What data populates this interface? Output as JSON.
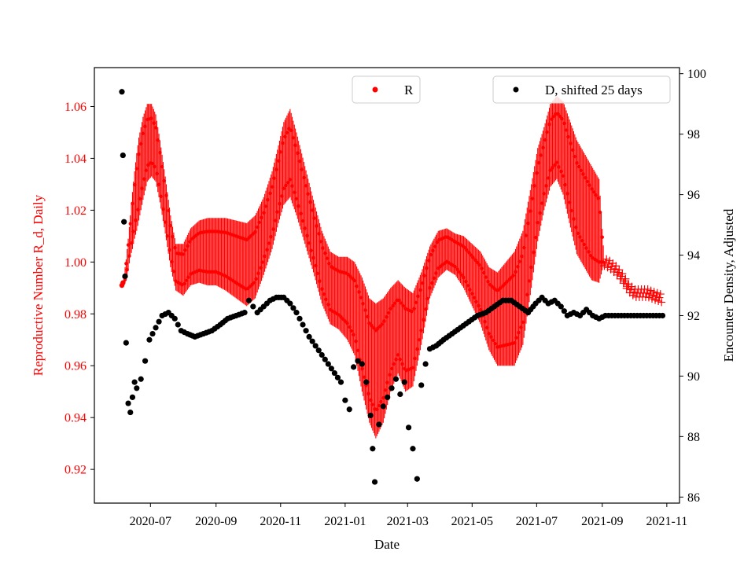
{
  "chart_data": {
    "type": "scatter",
    "title": "",
    "xlabel": "Date",
    "ylabel_left": "Reproductive Number R_d, Daily",
    "ylabel_right": "Encounter Density, Adjusted",
    "x_range": [
      "2020-05-09",
      "2021-11-13"
    ],
    "ylim_left": [
      0.907,
      1.075
    ],
    "ylim_right": [
      85.8,
      100.2
    ],
    "x_ticks": [
      "2020-07",
      "2020-09",
      "2020-11",
      "2021-01",
      "2021-03",
      "2021-05",
      "2021-07",
      "2021-09",
      "2021-11"
    ],
    "y_ticks_left": [
      "0.92",
      "0.94",
      "0.96",
      "0.98",
      "1.00",
      "1.02",
      "1.04",
      "1.06"
    ],
    "y_ticks_right": [
      "86",
      "88",
      "90",
      "92",
      "94",
      "96",
      "98",
      "100"
    ],
    "grid": false,
    "legend": [
      {
        "label": "R",
        "color": "#ff0000",
        "marker": "dot",
        "placement": "top-center"
      },
      {
        "label": "D, shifted 25 days",
        "color": "#000000",
        "marker": "dot",
        "placement": "top-right"
      }
    ],
    "series": [
      {
        "name": "R",
        "axis": "left",
        "color": "#ff0000",
        "x": [
          "2020-06-04",
          "2020-06-06",
          "2020-06-08",
          "2020-06-10",
          "2020-06-12",
          "2020-06-14",
          "2020-06-16",
          "2020-06-18",
          "2020-06-20",
          "2020-06-24",
          "2020-06-28",
          "2020-07-02",
          "2020-07-06",
          "2020-07-10",
          "2020-07-15",
          "2020-07-20",
          "2020-07-25",
          "2020-08-01",
          "2020-08-08",
          "2020-08-16",
          "2020-08-24",
          "2020-09-01",
          "2020-09-10",
          "2020-09-20",
          "2020-09-30",
          "2020-10-08",
          "2020-10-16",
          "2020-10-24",
          "2020-10-30",
          "2020-11-04",
          "2020-11-10",
          "2020-11-16",
          "2020-11-24",
          "2020-12-02",
          "2020-12-10",
          "2020-12-18",
          "2020-12-26",
          "2021-01-03",
          "2021-01-10",
          "2021-01-17",
          "2021-01-24",
          "2021-01-30",
          "2021-02-06",
          "2021-02-13",
          "2021-02-20",
          "2021-02-27",
          "2021-03-06",
          "2021-03-14",
          "2021-03-22",
          "2021-03-30",
          "2021-04-07",
          "2021-04-15",
          "2021-04-23",
          "2021-05-01",
          "2021-05-09",
          "2021-05-17",
          "2021-05-25",
          "2021-06-02",
          "2021-06-10",
          "2021-06-18",
          "2021-06-26",
          "2021-07-02",
          "2021-07-08",
          "2021-07-14",
          "2021-07-20",
          "2021-07-26",
          "2021-08-01",
          "2021-08-08",
          "2021-08-15",
          "2021-08-22",
          "2021-08-29",
          "2021-09-03",
          "2021-09-08",
          "2021-09-14",
          "2021-09-20",
          "2021-09-26",
          "2021-10-02",
          "2021-10-08",
          "2021-10-14",
          "2021-10-20",
          "2021-10-27"
        ],
        "y": [
          0.991,
          0.993,
          0.997,
          1.003,
          1.01,
          1.016,
          1.022,
          1.027,
          1.032,
          1.04,
          1.046,
          1.047,
          1.044,
          1.035,
          1.022,
          1.008,
          0.998,
          0.997,
          1.002,
          1.004,
          1.004,
          1.004,
          1.003,
          1.001,
          0.999,
          1.002,
          1.01,
          1.02,
          1.03,
          1.038,
          1.042,
          1.034,
          1.022,
          1.01,
          0.998,
          0.99,
          0.988,
          0.986,
          0.982,
          0.972,
          0.962,
          0.958,
          0.962,
          0.97,
          0.975,
          0.97,
          0.97,
          0.982,
          0.996,
          1.003,
          1.005,
          1.003,
          1.0,
          0.995,
          0.99,
          0.982,
          0.978,
          0.98,
          0.982,
          0.99,
          1.01,
          1.026,
          1.036,
          1.045,
          1.048,
          1.044,
          1.035,
          1.025,
          1.02,
          1.015,
          1.012,
          1.0,
          0.999,
          0.997,
          0.994,
          0.99,
          0.988,
          0.988,
          0.988,
          0.987,
          0.986
        ],
        "spread": [
          0.0,
          0.002,
          0.004,
          0.006,
          0.008,
          0.011,
          0.013,
          0.015,
          0.016,
          0.016,
          0.015,
          0.014,
          0.013,
          0.012,
          0.011,
          0.01,
          0.009,
          0.01,
          0.011,
          0.012,
          0.013,
          0.013,
          0.014,
          0.015,
          0.016,
          0.016,
          0.015,
          0.015,
          0.015,
          0.016,
          0.017,
          0.016,
          0.015,
          0.014,
          0.014,
          0.014,
          0.014,
          0.016,
          0.018,
          0.022,
          0.024,
          0.026,
          0.024,
          0.02,
          0.018,
          0.02,
          0.018,
          0.014,
          0.01,
          0.009,
          0.008,
          0.008,
          0.01,
          0.012,
          0.014,
          0.016,
          0.018,
          0.02,
          0.022,
          0.022,
          0.02,
          0.018,
          0.016,
          0.016,
          0.016,
          0.018,
          0.02,
          0.022,
          0.022,
          0.022,
          0.02,
          0.0,
          0.0,
          0.0,
          0.0,
          0.0,
          0.0,
          0.0,
          0.0,
          0.0,
          0.0
        ]
      },
      {
        "name": "D, shifted 25 days",
        "axis": "right",
        "color": "#000000",
        "x": [
          "2020-06-04",
          "2020-06-05",
          "2020-06-06",
          "2020-06-07",
          "2020-06-08",
          "2020-06-10",
          "2020-06-12",
          "2020-06-14",
          "2020-06-16",
          "2020-06-18",
          "2020-06-22",
          "2020-06-26",
          "2020-06-30",
          "2020-07-06",
          "2020-07-12",
          "2020-07-18",
          "2020-07-24",
          "2020-07-30",
          "2020-08-05",
          "2020-08-12",
          "2020-08-20",
          "2020-08-28",
          "2020-09-05",
          "2020-09-12",
          "2020-09-20",
          "2020-09-28",
          "2020-10-02",
          "2020-10-06",
          "2020-10-10",
          "2020-10-16",
          "2020-10-22",
          "2020-10-28",
          "2020-11-04",
          "2020-11-10",
          "2020-11-16",
          "2020-11-22",
          "2020-11-28",
          "2020-12-04",
          "2020-12-10",
          "2020-12-16",
          "2020-12-22",
          "2020-12-28",
          "2021-01-01",
          "2021-01-05",
          "2021-01-09",
          "2021-01-13",
          "2021-01-17",
          "2021-01-21",
          "2021-01-25",
          "2021-01-27",
          "2021-01-29",
          "2021-02-02",
          "2021-02-06",
          "2021-02-10",
          "2021-02-14",
          "2021-02-18",
          "2021-02-22",
          "2021-02-26",
          "2021-03-02",
          "2021-03-06",
          "2021-03-10",
          "2021-03-14",
          "2021-03-18",
          "2021-03-22",
          "2021-03-28",
          "2021-04-04",
          "2021-04-12",
          "2021-04-20",
          "2021-04-28",
          "2021-05-06",
          "2021-05-14",
          "2021-05-22",
          "2021-05-30",
          "2021-06-07",
          "2021-06-15",
          "2021-06-23",
          "2021-06-30",
          "2021-07-06",
          "2021-07-12",
          "2021-07-18",
          "2021-07-24",
          "2021-07-30",
          "2021-08-05",
          "2021-08-11",
          "2021-08-17",
          "2021-08-23",
          "2021-08-29",
          "2021-09-04",
          "2021-09-10",
          "2021-09-16",
          "2021-09-22",
          "2021-09-28",
          "2021-10-04",
          "2021-10-10",
          "2021-10-16",
          "2021-10-22",
          "2021-10-28"
        ],
        "y": [
          99.4,
          97.3,
          95.1,
          93.3,
          91.1,
          89.1,
          88.8,
          89.3,
          89.8,
          89.6,
          89.9,
          90.5,
          91.2,
          91.6,
          92.0,
          92.1,
          91.9,
          91.5,
          91.4,
          91.3,
          91.4,
          91.5,
          91.7,
          91.9,
          92.0,
          92.1,
          92.5,
          92.3,
          92.1,
          92.3,
          92.5,
          92.6,
          92.6,
          92.4,
          92.1,
          91.7,
          91.3,
          91.0,
          90.7,
          90.4,
          90.1,
          89.8,
          89.2,
          88.9,
          90.3,
          90.5,
          90.4,
          89.8,
          88.7,
          87.6,
          86.5,
          88.4,
          89.0,
          89.3,
          89.6,
          89.9,
          89.4,
          89.8,
          88.3,
          87.6,
          86.6,
          89.7,
          90.4,
          90.9,
          91.0,
          91.2,
          91.4,
          91.6,
          91.8,
          92.0,
          92.1,
          92.3,
          92.5,
          92.5,
          92.3,
          92.1,
          92.4,
          92.6,
          92.4,
          92.5,
          92.3,
          92.0,
          92.1,
          92.0,
          92.2,
          92.0,
          91.9,
          92.0,
          92.0,
          92.0,
          92.0,
          92.0,
          92.0,
          92.0,
          92.0,
          92.0,
          92.0
        ]
      }
    ]
  }
}
